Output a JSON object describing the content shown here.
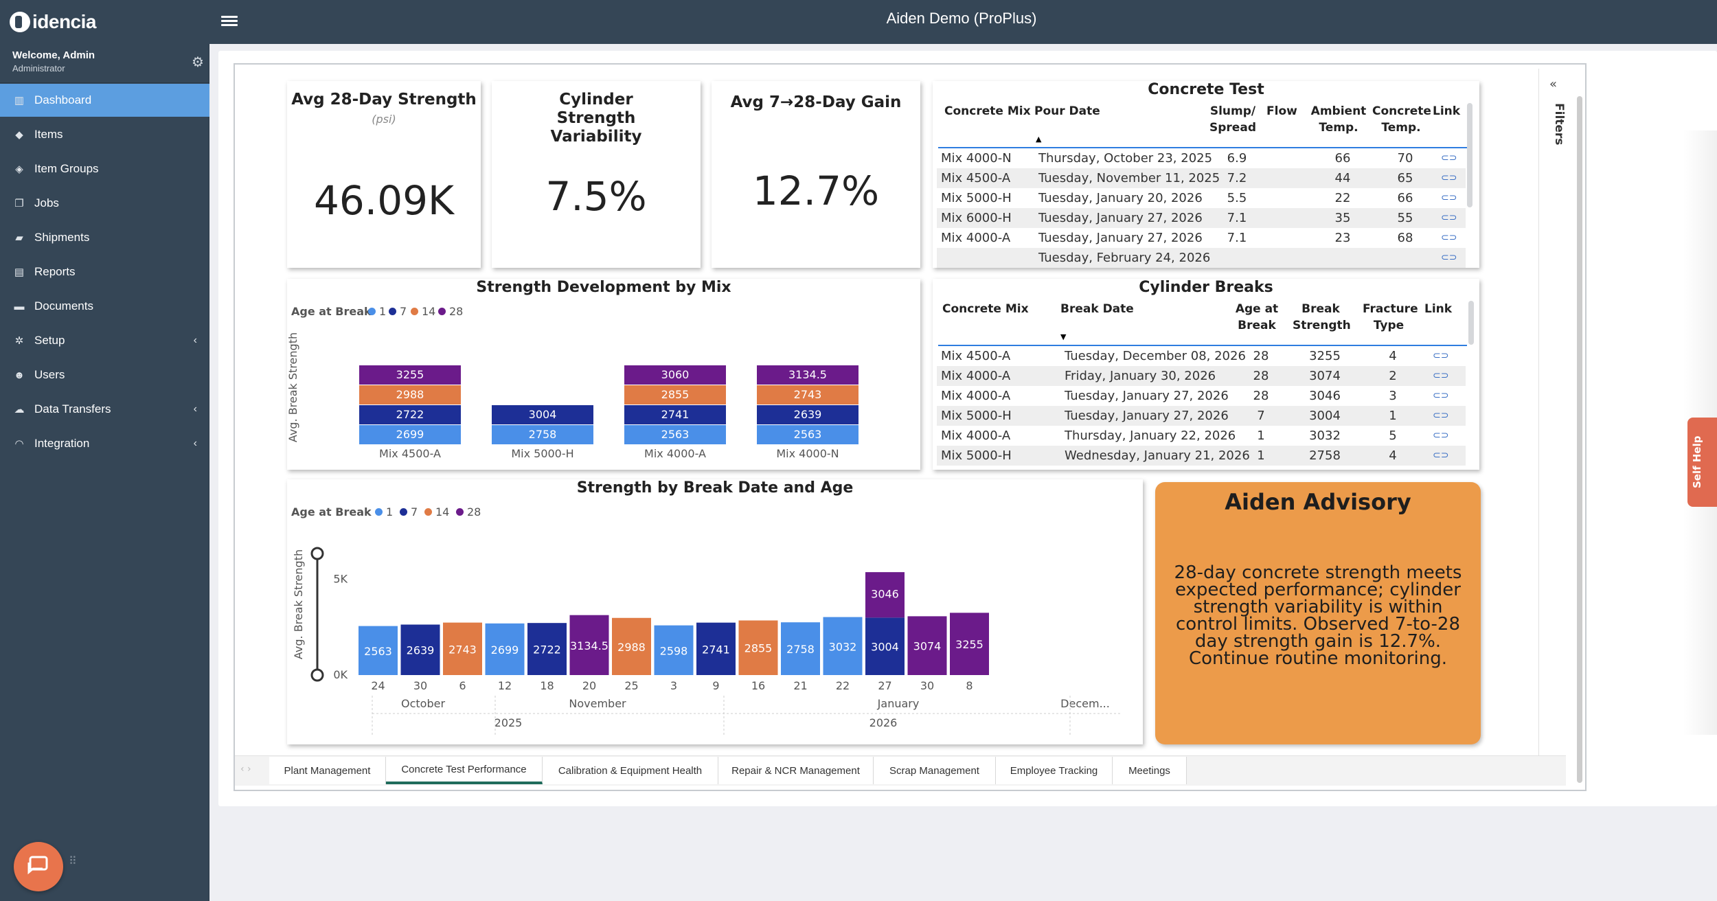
{
  "app": {
    "brand": "idencia",
    "title": "Aiden Demo (ProPlus)"
  },
  "user": {
    "welcome": "Welcome, Admin",
    "role": "Administrator"
  },
  "sidebar": {
    "items": [
      {
        "label": "Dashboard",
        "icon": "chart-icon",
        "active": true
      },
      {
        "label": "Items",
        "icon": "tag-icon"
      },
      {
        "label": "Item Groups",
        "icon": "tags-icon"
      },
      {
        "label": "Jobs",
        "icon": "copy-icon"
      },
      {
        "label": "Shipments",
        "icon": "truck-icon"
      },
      {
        "label": "Reports",
        "icon": "report-icon"
      },
      {
        "label": "Documents",
        "icon": "folder-icon"
      },
      {
        "label": "Setup",
        "icon": "cogs-icon",
        "chevron": true
      },
      {
        "label": "Users",
        "icon": "users-icon"
      },
      {
        "label": "Data Transfers",
        "icon": "cloud-icon",
        "chevron": true
      },
      {
        "label": "Integration",
        "icon": "rss-icon",
        "chevron": true
      }
    ]
  },
  "kpis": [
    {
      "title": "Avg 28-Day Strength",
      "subtitle": "(psi)",
      "value": "46.09K"
    },
    {
      "title": "Cylinder Strength Variability",
      "value": "7.5%"
    },
    {
      "title": "Avg 7→28-Day Gain",
      "value": "12.7%"
    }
  ],
  "concrete_test": {
    "title": "Concrete Test",
    "headers": [
      "Concrete Mix",
      "Pour Date",
      "Slump/ Spread",
      "Flow",
      "Ambient Temp.",
      "Concrete Temp.",
      "Link"
    ],
    "rows": [
      [
        "Mix 4000-N",
        "Thursday, October 23, 2025",
        "6.9",
        "",
        "66",
        "70"
      ],
      [
        "Mix 4500-A",
        "Tuesday, November 11, 2025",
        "7.2",
        "",
        "44",
        "65"
      ],
      [
        "Mix 5000-H",
        "Tuesday, January 20, 2026",
        "5.5",
        "",
        "22",
        "66"
      ],
      [
        "Mix 6000-H",
        "Tuesday, January 27, 2026",
        "7.1",
        "",
        "35",
        "55"
      ],
      [
        "Mix 4000-A",
        "Tuesday, January 27, 2026",
        "7.1",
        "",
        "23",
        "68"
      ],
      [
        "",
        "Tuesday, February 24, 2026",
        "",
        "",
        "",
        ""
      ]
    ]
  },
  "cylinder_breaks": {
    "title": "Cylinder Breaks",
    "headers": [
      "Concrete Mix",
      "Break Date",
      "Age at Break",
      "Break Strength",
      "Fracture Type",
      "Link"
    ],
    "rows": [
      [
        "Mix 4500-A",
        "Tuesday, December 08, 2026",
        "28",
        "3255",
        "4"
      ],
      [
        "Mix 4000-A",
        "Friday, January 30, 2026",
        "28",
        "3074",
        "2"
      ],
      [
        "Mix 4000-A",
        "Tuesday, January 27, 2026",
        "28",
        "3046",
        "3"
      ],
      [
        "Mix 5000-H",
        "Tuesday, January 27, 2026",
        "7",
        "3004",
        "1"
      ],
      [
        "Mix 4000-A",
        "Thursday, January 22, 2026",
        "1",
        "3032",
        "5"
      ],
      [
        "Mix 5000-H",
        "Wednesday, January 21, 2026",
        "1",
        "2758",
        "4"
      ]
    ]
  },
  "legend": {
    "label": "Age at Break",
    "items": [
      "1",
      "7",
      "14",
      "28"
    ],
    "colors": [
      "#4a8fe8",
      "#1d2f96",
      "#e07b45",
      "#6b1b8a"
    ]
  },
  "chart_data": [
    {
      "type": "bar",
      "title": "Strength Development by Mix",
      "ylabel": "Avg. Break Strength",
      "stacked": true,
      "categories": [
        "Mix 4500-A",
        "Mix 5000-H",
        "Mix 4000-A",
        "Mix 4000-N"
      ],
      "series": [
        {
          "name": "1",
          "values": [
            2699,
            2758,
            2563,
            2563
          ]
        },
        {
          "name": "7",
          "values": [
            2722,
            3004,
            2741,
            2639
          ]
        },
        {
          "name": "14",
          "values": [
            2988,
            null,
            2855,
            2743
          ]
        },
        {
          "name": "28",
          "values": [
            3255,
            null,
            3060,
            3134.5
          ]
        }
      ]
    },
    {
      "type": "bar",
      "title": "Strength by Break Date and Age",
      "ylabel": "Avg. Break Strength",
      "yticks": [
        "5K",
        "0K"
      ],
      "ylim": [
        0,
        7000
      ],
      "x_days": [
        "24",
        "30",
        "6",
        "12",
        "18",
        "20",
        "25",
        "3",
        "9",
        "16",
        "21",
        "22",
        "27",
        "30",
        "8"
      ],
      "x_months": [
        "October",
        "November",
        "January",
        "Decem..."
      ],
      "x_years": [
        "2025",
        "2026"
      ],
      "bars": [
        {
          "day": "24",
          "age": "1",
          "value": 2563
        },
        {
          "day": "30",
          "age": "7",
          "value": 2639
        },
        {
          "day": "6",
          "age": "14",
          "value": 2743
        },
        {
          "day": "12",
          "age": "1",
          "value": 2699
        },
        {
          "day": "18",
          "age": "7",
          "value": 2722
        },
        {
          "day": "20",
          "age": "28",
          "value": 3134.5
        },
        {
          "day": "25",
          "age": "14",
          "value": 2988
        },
        {
          "day": "3",
          "age": "1",
          "value": 2598
        },
        {
          "day": "9",
          "age": "7",
          "value": 2741
        },
        {
          "day": "16",
          "age": "14",
          "value": 2855
        },
        {
          "day": "21",
          "age": "1",
          "value": 2758
        },
        {
          "day": "22",
          "age": "1",
          "value": 3032
        },
        {
          "day": "27",
          "age": "7",
          "value": 3004,
          "stack": [
            {
              "age": "28",
              "value": 3046
            }
          ]
        },
        {
          "day": "30",
          "age": "28",
          "value": 3074
        },
        {
          "day": "8",
          "age": "28",
          "value": 3255
        }
      ]
    }
  ],
  "advisory": {
    "title": "Aiden Advisory",
    "text": "28-day concrete strength meets expected performance; cylinder strength variability is within control limits. Observed 7-to-28 day strength gain is 12.7%. Continue routine monitoring."
  },
  "filters": {
    "label": "Filters"
  },
  "tabs": [
    "Plant Management",
    "Concrete Test Performance",
    "Calibration & Equipment Health",
    "Repair & NCR Management",
    "Scrap Management",
    "Employee Tracking",
    "Meetings"
  ],
  "active_tab": "Concrete Test Performance",
  "self_help": "Self Help"
}
